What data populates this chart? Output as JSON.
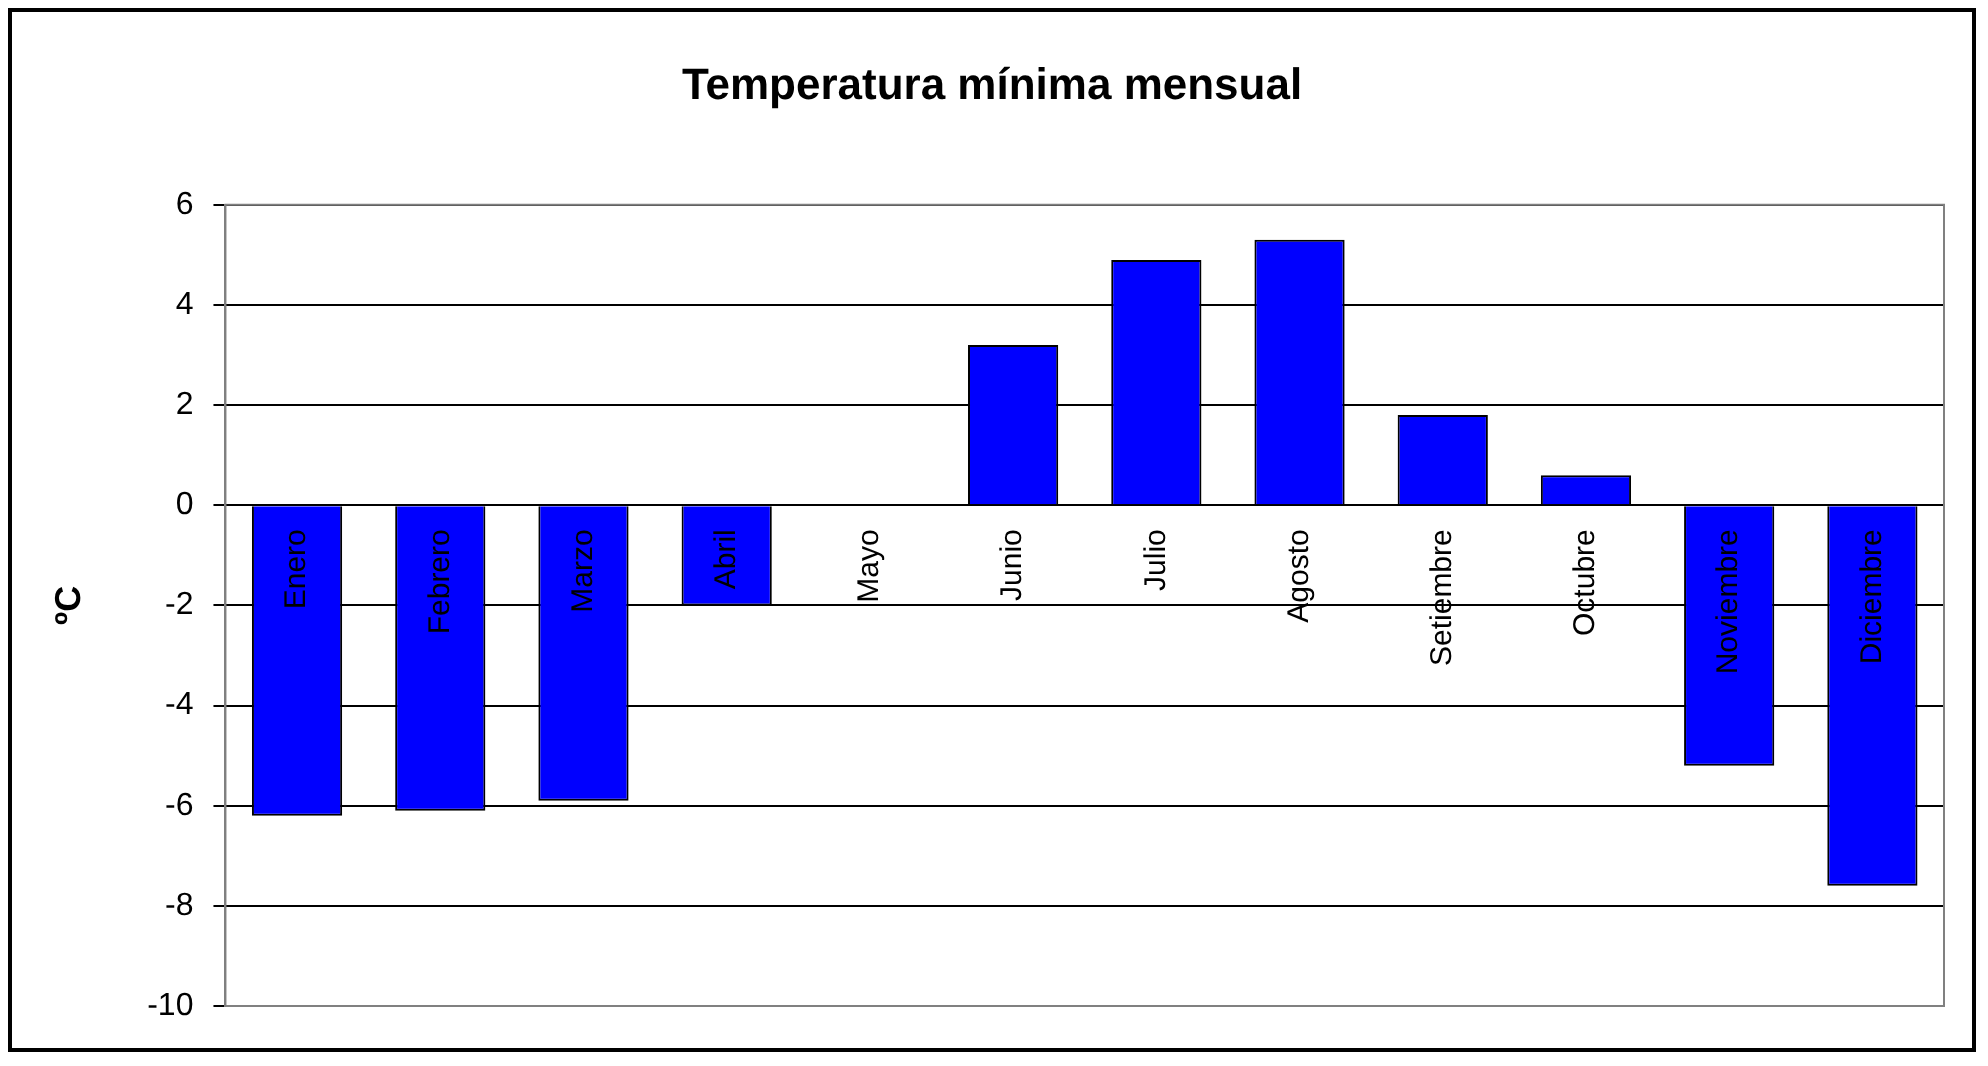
{
  "chart_data": {
    "type": "bar",
    "title": "Temperatura mínima mensual",
    "ylabel": "ºC",
    "categories": [
      "Enero",
      "Febrero",
      "Marzo",
      "Abril",
      "Mayo",
      "Junio",
      "Julio",
      "Agosto",
      "Setiembre",
      "Octubre",
      "Noviembre",
      "Diciembre"
    ],
    "values": [
      -6.2,
      -6.1,
      -5.9,
      -2.0,
      0,
      3.2,
      4.9,
      5.3,
      1.8,
      0.6,
      -5.2,
      -7.6
    ],
    "color": "#0000ff",
    "ylim": [
      -10,
      6
    ],
    "yticks": [
      -10,
      -8,
      -6,
      -4,
      -2,
      0,
      2,
      4,
      6
    ],
    "grid": "y",
    "legend": false
  }
}
